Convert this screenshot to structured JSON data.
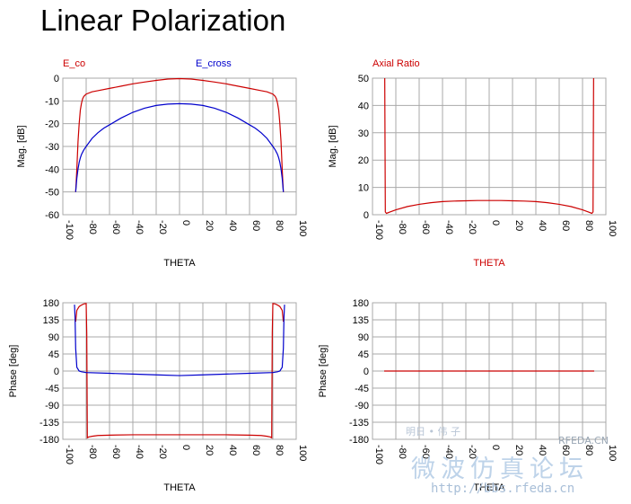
{
  "page": {
    "title": "Linear Polarization"
  },
  "watermark": {
    "small_text": "明日 • 伟 子",
    "logo_text": "RFEDA.CN",
    "big_text": "微波仿真论坛",
    "url": "http://bbs.rfeda.cn"
  },
  "colors": {
    "red": "#cc0000",
    "blue": "#0000cc",
    "grid": "#a9a9a9",
    "text": "#000000"
  },
  "chart_data": [
    {
      "type": "line",
      "xlabel": "THETA",
      "xlabel_color": "#000000",
      "ylabel": "Mag. [dB]",
      "xlim": [
        -100,
        100
      ],
      "xticks": [
        -100,
        -80,
        -60,
        -40,
        -20,
        0,
        20,
        40,
        60,
        80,
        100
      ],
      "ylim": [
        -60,
        0
      ],
      "yticks": [
        0,
        -10,
        -20,
        -30,
        -40,
        -50,
        -60
      ],
      "grid": true,
      "legend": [
        {
          "label": "E_co",
          "color": "#cc0000"
        },
        {
          "label": "E_cross",
          "color": "#0000cc"
        }
      ],
      "series": [
        {
          "name": "E_co",
          "color": "#cc0000",
          "x": [
            -89,
            -88,
            -87,
            -86,
            -85,
            -84,
            -83,
            -82,
            -80,
            -75,
            -70,
            -60,
            -50,
            -40,
            -30,
            -20,
            -10,
            0,
            10,
            20,
            30,
            40,
            50,
            60,
            70,
            75,
            80,
            82,
            83,
            84,
            85,
            86,
            87,
            88,
            89
          ],
          "y": [
            -50,
            -40,
            -28,
            -20,
            -14,
            -11,
            -9,
            -8,
            -7,
            -6,
            -5.5,
            -4.5,
            -3.5,
            -2.5,
            -1.7,
            -1,
            -0.4,
            -0.2,
            -0.4,
            -1,
            -1.7,
            -2.5,
            -3.5,
            -4.5,
            -5.5,
            -6,
            -7,
            -8,
            -9,
            -11,
            -14,
            -20,
            -28,
            -40,
            -50
          ]
        },
        {
          "name": "E_cross",
          "color": "#0000cc",
          "x": [
            -89,
            -88,
            -87,
            -86,
            -85,
            -84,
            -83,
            -82,
            -80,
            -75,
            -70,
            -65,
            -60,
            -50,
            -40,
            -30,
            -20,
            -10,
            0,
            10,
            20,
            30,
            40,
            50,
            60,
            65,
            70,
            75,
            80,
            82,
            83,
            84,
            85,
            86,
            87,
            88,
            89
          ],
          "y": [
            -50,
            -44,
            -40,
            -37,
            -35,
            -33.5,
            -32.5,
            -31.5,
            -30,
            -26.5,
            -24,
            -22,
            -20.5,
            -17.5,
            -15,
            -13.2,
            -12,
            -11.4,
            -11.2,
            -11.4,
            -12,
            -13.2,
            -15,
            -17.5,
            -20.5,
            -22,
            -24,
            -26.5,
            -30,
            -31.5,
            -32.5,
            -33.5,
            -35,
            -37,
            -40,
            -44,
            -50
          ]
        }
      ]
    },
    {
      "type": "line",
      "xlabel": "THETA",
      "xlabel_color": "#cc0000",
      "ylabel": "Mag. [dB]",
      "xlim": [
        -100,
        100
      ],
      "xticks": [
        -100,
        -80,
        -60,
        -40,
        -20,
        0,
        20,
        40,
        60,
        80,
        100
      ],
      "ylim": [
        0,
        50
      ],
      "yticks": [
        50,
        40,
        30,
        20,
        10,
        0
      ],
      "grid": true,
      "legend": [
        {
          "label": "Axial Ratio",
          "color": "#cc0000"
        }
      ],
      "series": [
        {
          "name": "Axial Ratio",
          "color": "#cc0000",
          "x": [
            -89.5,
            -89,
            -88,
            -85,
            -80,
            -70,
            -60,
            -50,
            -40,
            -30,
            -20,
            -10,
            0,
            10,
            20,
            30,
            40,
            50,
            60,
            70,
            80,
            85,
            88,
            89,
            89.5
          ],
          "y": [
            50,
            1,
            0.5,
            1,
            1.8,
            3,
            3.8,
            4.4,
            4.8,
            5,
            5.1,
            5.2,
            5.2,
            5.2,
            5.1,
            5,
            4.8,
            4.4,
            3.8,
            3,
            1.8,
            1,
            0.5,
            1,
            50
          ]
        }
      ]
    },
    {
      "type": "line",
      "xlabel": "THETA",
      "xlabel_color": "#000000",
      "ylabel": "Phase [deg]",
      "xlim": [
        -100,
        100
      ],
      "xticks": [
        -100,
        -80,
        -60,
        -40,
        -20,
        0,
        20,
        40,
        60,
        80,
        100
      ],
      "ylim": [
        -180,
        180
      ],
      "yticks": [
        180,
        135,
        90,
        45,
        0,
        -45,
        -90,
        -135,
        -180
      ],
      "grid": true,
      "legend": [],
      "series": [
        {
          "name": "",
          "color": "#cc0000",
          "x": [
            -89,
            -88,
            -86,
            -84,
            -82,
            -80,
            -79.5,
            -79,
            -78,
            -75,
            -70,
            -60,
            -40,
            -20,
            0,
            20,
            40,
            60,
            70,
            75,
            78,
            79,
            79.5,
            80,
            82,
            84,
            86,
            88,
            89
          ],
          "y": [
            130,
            160,
            170,
            174,
            177,
            178,
            100,
            -176,
            -174,
            -172,
            -170,
            -169,
            -168,
            -168,
            -168,
            -168,
            -168,
            -169,
            -170,
            -172,
            -174,
            -176,
            100,
            178,
            177,
            174,
            170,
            160,
            130
          ]
        },
        {
          "name": "",
          "color": "#0000cc",
          "x": [
            -90,
            -89.5,
            -89,
            -88,
            -86,
            -84,
            -80,
            -60,
            -40,
            -20,
            0,
            20,
            40,
            60,
            80,
            84,
            86,
            88,
            89,
            89.5,
            90
          ],
          "y": [
            175,
            140,
            60,
            10,
            0,
            -2,
            -4,
            -6,
            -8,
            -10,
            -12,
            -10,
            -8,
            -6,
            -4,
            -2,
            0,
            10,
            60,
            140,
            175
          ]
        }
      ]
    },
    {
      "type": "line",
      "xlabel": "THETA",
      "xlabel_color": "#000000",
      "ylabel": "Phase [deg]",
      "xlim": [
        -100,
        100
      ],
      "xticks": [
        -100,
        -80,
        -60,
        -40,
        -20,
        0,
        20,
        40,
        60,
        80,
        100
      ],
      "ylim": [
        -180,
        180
      ],
      "yticks": [
        180,
        135,
        90,
        45,
        0,
        -45,
        -90,
        -135,
        -180
      ],
      "grid": true,
      "legend": [],
      "series": [
        {
          "name": "",
          "color": "#cc0000",
          "x": [
            -90,
            90
          ],
          "y": [
            0,
            0
          ]
        }
      ]
    }
  ]
}
